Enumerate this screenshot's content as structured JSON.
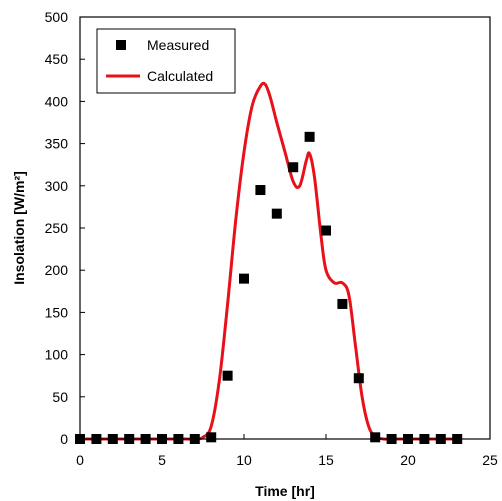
{
  "chart_data": {
    "type": "scatter+line",
    "xlabel": "Time  [hr]",
    "ylabel": "Insolation  [W/m²]",
    "xlim": [
      0,
      25
    ],
    "ylim": [
      0,
      500
    ],
    "xticks": [
      0,
      5,
      10,
      15,
      20,
      25
    ],
    "yticks": [
      0,
      50,
      100,
      150,
      200,
      250,
      300,
      350,
      400,
      450,
      500
    ],
    "grid": false,
    "legend_position": "top-left",
    "series": [
      {
        "name": "Measured",
        "kind": "scatter",
        "marker": "square",
        "color": "#000000",
        "x": [
          0,
          1,
          2,
          3,
          4,
          5,
          6,
          7,
          8,
          9,
          10,
          11,
          12,
          13,
          14,
          15,
          16,
          17,
          18,
          19,
          20,
          21,
          22,
          23
        ],
        "y": [
          0,
          0,
          0,
          0,
          0,
          0,
          0,
          0,
          2,
          75,
          190,
          295,
          267,
          322,
          358,
          247,
          160,
          72,
          2,
          0,
          0,
          0,
          0,
          0
        ]
      },
      {
        "name": "Calculated",
        "kind": "line",
        "color": "#e8111a",
        "x": [
          0,
          1,
          2,
          3,
          4,
          5,
          6,
          7,
          7.5,
          8,
          8.5,
          9,
          9.5,
          10,
          10.5,
          11,
          11.3,
          11.6,
          12,
          12.5,
          13,
          13.4,
          13.8,
          14,
          14.3,
          14.7,
          15,
          15.5,
          16,
          16.4,
          16.8,
          17.2,
          17.6,
          18,
          18.5,
          19,
          20,
          21,
          22,
          23
        ],
        "y": [
          0,
          0,
          0,
          0,
          0,
          0,
          0,
          0,
          2,
          15,
          70,
          160,
          260,
          340,
          395,
          418,
          420,
          405,
          375,
          340,
          305,
          300,
          330,
          338,
          310,
          240,
          200,
          185,
          185,
          170,
          110,
          50,
          15,
          3,
          0,
          0,
          0,
          0,
          0,
          0
        ]
      }
    ]
  }
}
